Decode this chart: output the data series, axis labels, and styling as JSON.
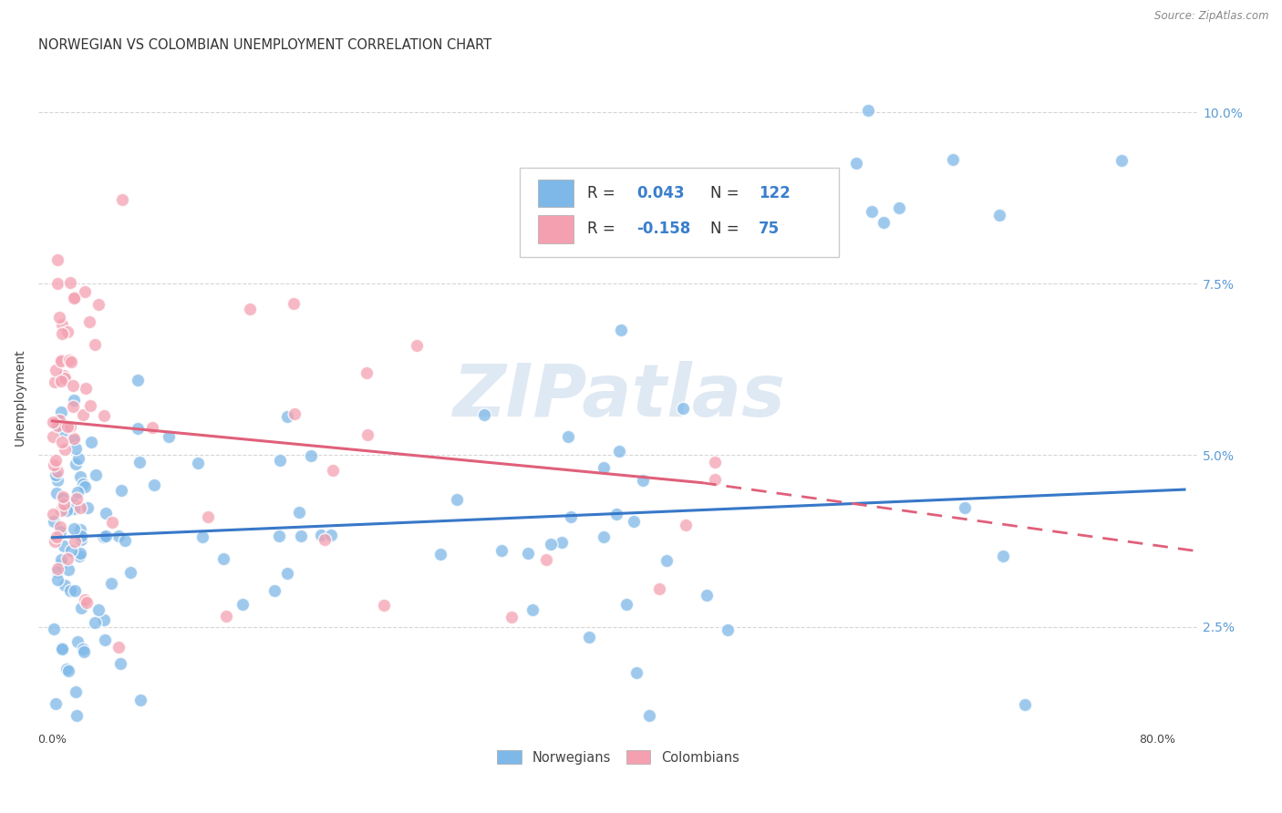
{
  "title": "NORWEGIAN VS COLOMBIAN UNEMPLOYMENT CORRELATION CHART",
  "source": "Source: ZipAtlas.com",
  "ylabel": "Unemployment",
  "xlabel_ticks": [
    "0.0%",
    "",
    "",
    "",
    "80.0%"
  ],
  "xlabel_vals": [
    0.0,
    0.2,
    0.4,
    0.6,
    0.8
  ],
  "ylabel_ticks": [
    "2.5%",
    "5.0%",
    "7.5%",
    "10.0%"
  ],
  "ylabel_vals": [
    0.025,
    0.05,
    0.075,
    0.1
  ],
  "xlim": [
    -0.01,
    0.83
  ],
  "ylim": [
    0.01,
    0.107
  ],
  "norwegian_color": "#7EB8E8",
  "colombian_color": "#F4A0B0",
  "norwegian_line_color": "#3878C8",
  "colombian_line_color": "#E0607A",
  "norwegian_R": 0.043,
  "norwegian_N": 122,
  "colombian_R": -0.158,
  "colombian_N": 75,
  "watermark": "ZIPatlas",
  "background_color": "#ffffff",
  "grid_color": "#cccccc",
  "title_fontsize": 10.5,
  "axis_label_fontsize": 10,
  "tick_fontsize": 9,
  "legend_label_blue": "Norwegians",
  "legend_label_pink": "Colombians",
  "right_tick_color": "#5B9BD5"
}
